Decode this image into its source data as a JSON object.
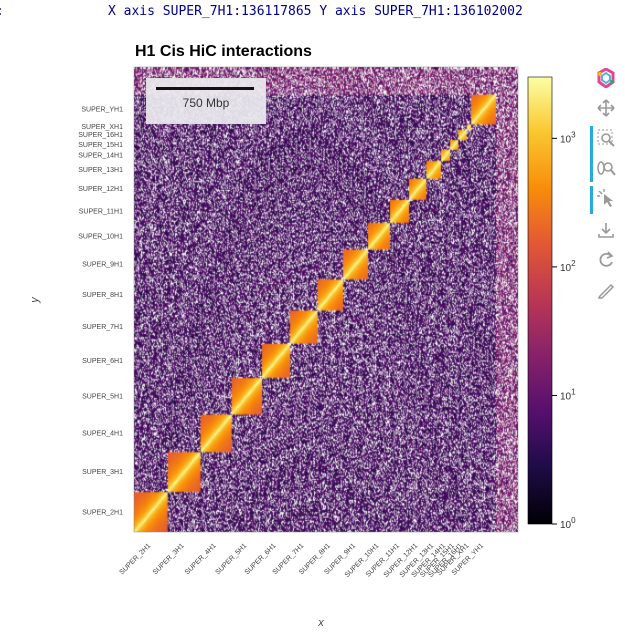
{
  "coord_readout": {
    "lead": ":",
    "text": "X axis SUPER_7H1:136117865 Y axis SUPER_7H1:136102002"
  },
  "scale_bar": {
    "label": "750 Mbp"
  },
  "toolbar": {
    "items": [
      {
        "name": "bokeh-logo-icon"
      },
      {
        "name": "pan-tool-icon"
      },
      {
        "name": "box-zoom-tool-icon"
      },
      {
        "name": "wheel-zoom-tool-icon"
      },
      {
        "name": "tap-tool-icon"
      },
      {
        "name": "save-tool-icon"
      },
      {
        "name": "reset-tool-icon"
      },
      {
        "name": "hover-tool-icon"
      }
    ]
  },
  "chart_data": {
    "type": "heatmap",
    "title": "H1 Cis HiC interactions",
    "xlabel": "x",
    "ylabel": "y",
    "colormap": "inferno",
    "color_scale": "log",
    "colorbar": {
      "range": [
        1,
        3000
      ],
      "ticks": [
        {
          "base": "10",
          "exp": "0",
          "value": 1
        },
        {
          "base": "10",
          "exp": "1",
          "value": 10
        },
        {
          "base": "10",
          "exp": "2",
          "value": 100
        },
        {
          "base": "10",
          "exp": "3",
          "value": 1000
        }
      ]
    },
    "chromosomes": [
      "SUPER_2H1",
      "SUPER_3H1",
      "SUPER_4H1",
      "SUPER_5H1",
      "SUPER_6H1",
      "SUPER_7H1",
      "SUPER_8H1",
      "SUPER_9H1",
      "SUPER_10H1",
      "SUPER_11H1",
      "SUPER_12H1",
      "SUPER_13H1",
      "SUPER_14H1",
      "SUPER_15H1",
      "SUPER_16H1",
      "SUPER_XH1",
      "SUPER_YH1"
    ],
    "chromosome_bins": [
      37,
      36,
      34,
      33,
      31,
      30,
      28,
      27,
      24,
      21,
      19,
      16,
      10,
      9,
      9,
      5,
      27
    ],
    "unplaced_bins": 24,
    "diagonal_value": 3000,
    "background_value": 3
  }
}
